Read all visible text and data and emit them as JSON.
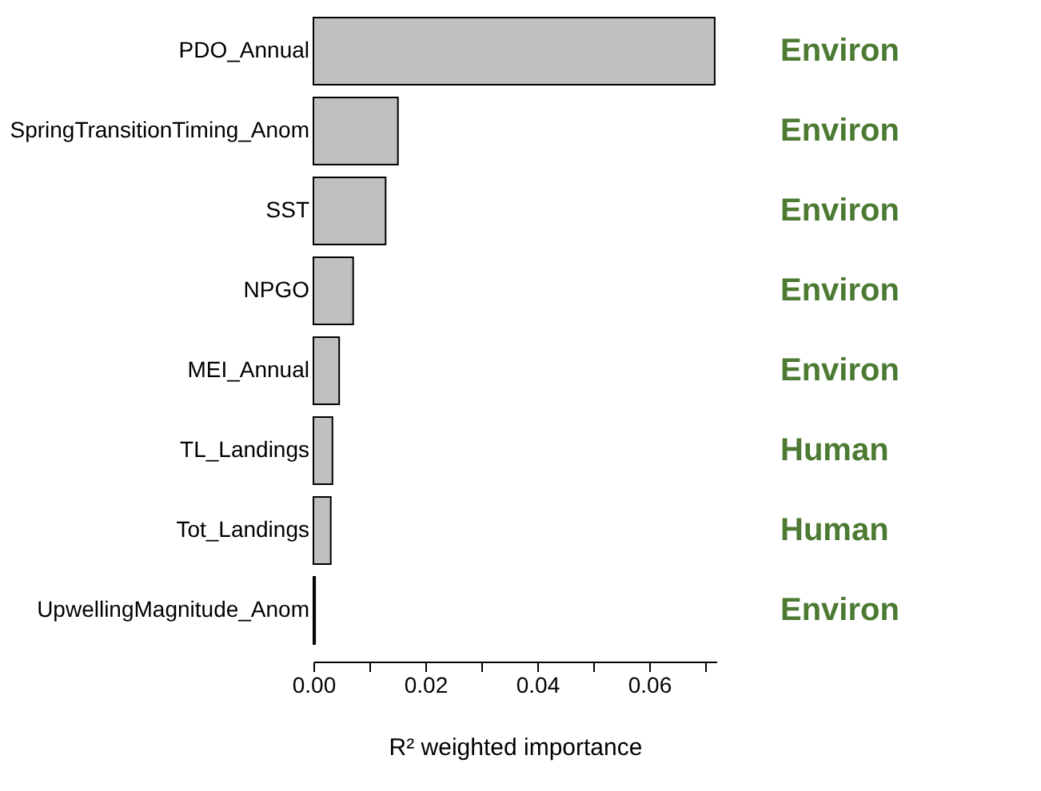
{
  "chart_data": {
    "type": "bar",
    "orientation": "horizontal",
    "xlabel": "R² weighted importance",
    "categories": [
      "PDO_Annual",
      "SpringTransitionTiming_Anom",
      "SST",
      "NPGO",
      "MEI_Annual",
      "TL_Landings",
      "Tot_Landings",
      "UpwellingMagnitude_Anom"
    ],
    "values": [
      0.0717,
      0.0151,
      0.0129,
      0.0071,
      0.0046,
      0.0034,
      0.0031,
      0.0003
    ],
    "color": "#c0c0c0",
    "xlim": [
      0,
      0.072
    ],
    "xticks": [
      {
        "value": 0,
        "label": "0.00"
      },
      {
        "value": 0.01,
        "label": null
      },
      {
        "value": 0.02,
        "label": "0.02"
      },
      {
        "value": 0.03,
        "label": null
      },
      {
        "value": 0.04,
        "label": "0.04"
      },
      {
        "value": 0.05,
        "label": null
      },
      {
        "value": 0.06,
        "label": "0.06"
      },
      {
        "value": 0.07,
        "label": null
      }
    ],
    "y2_categories": [
      "Environ",
      "Environ",
      "Environ",
      "Environ",
      "Environ",
      "Human",
      "Human",
      "Environ"
    ]
  }
}
